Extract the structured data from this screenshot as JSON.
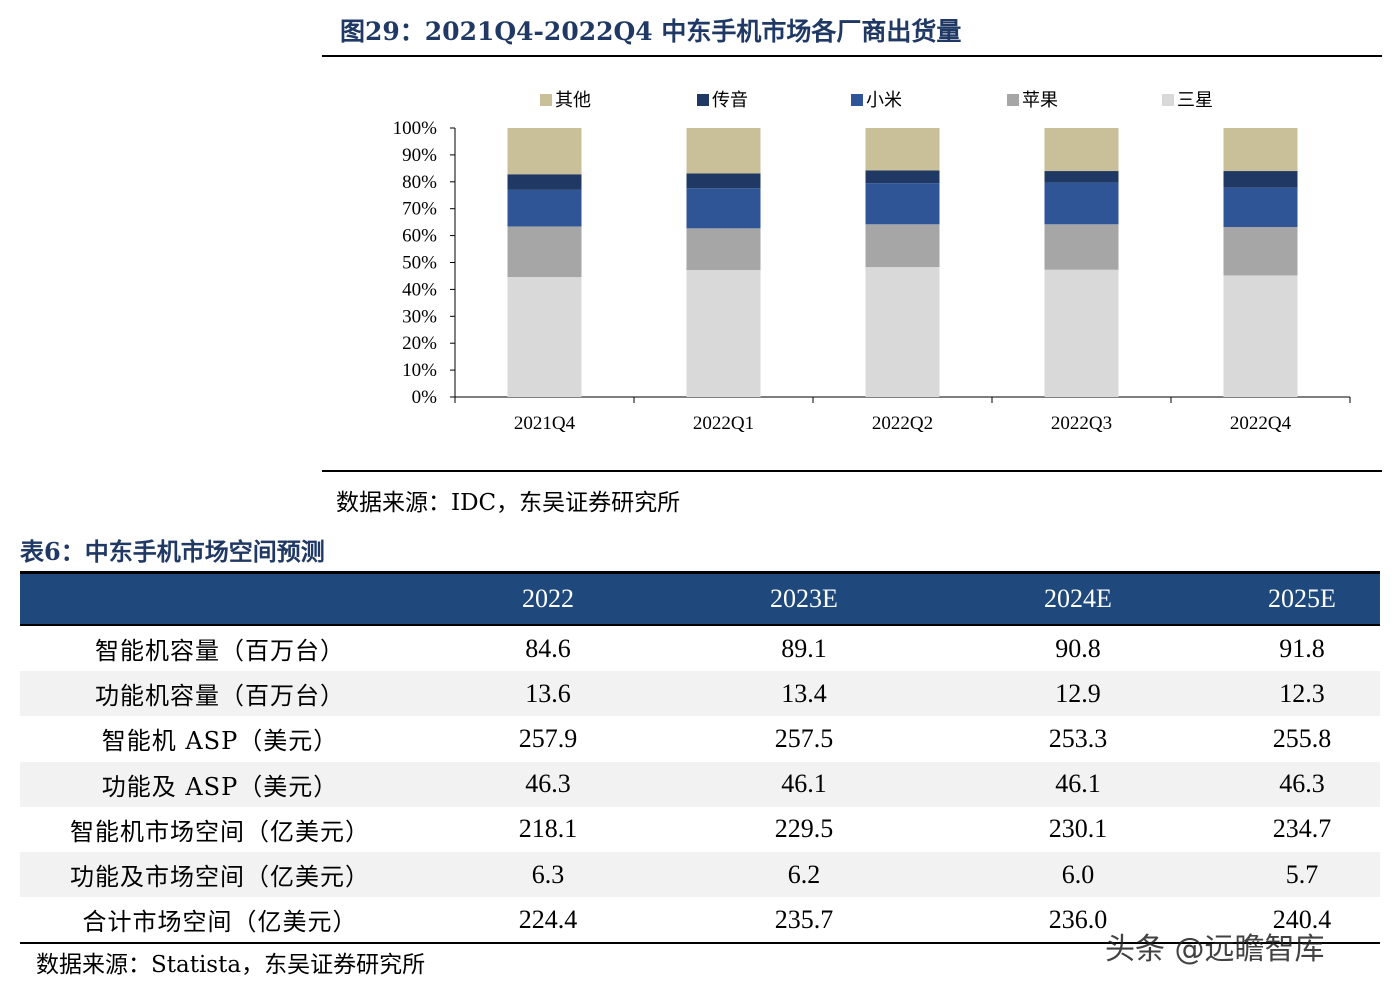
{
  "figure": {
    "title": "图29：2021Q4-2022Q4 中东手机市场各厂商出货量",
    "source": "数据来源：IDC，东吴证券研究所"
  },
  "chart_data": {
    "type": "bar",
    "stacked": true,
    "categories": [
      "2021Q4",
      "2022Q1",
      "2022Q2",
      "2022Q3",
      "2022Q4"
    ],
    "series": [
      {
        "name": "三星",
        "color": "#d9d9d9",
        "values": [
          44.6,
          47.2,
          48.3,
          47.3,
          45.2
        ]
      },
      {
        "name": "苹果",
        "color": "#a6a6a6",
        "values": [
          18.8,
          15.5,
          15.9,
          16.9,
          18.0
        ]
      },
      {
        "name": "小米",
        "color": "#2f5597",
        "values": [
          13.6,
          14.9,
          15.3,
          15.5,
          14.6
        ]
      },
      {
        "name": "传音",
        "color": "#1f3864",
        "values": [
          5.8,
          5.5,
          4.7,
          4.3,
          6.2
        ]
      },
      {
        "name": "其他",
        "color": "#c9bf99",
        "values": [
          17.2,
          16.9,
          15.8,
          16.0,
          16.0
        ]
      }
    ],
    "legend_order": [
      "其他",
      "传音",
      "小米",
      "苹果",
      "三星"
    ],
    "legend_position": "top",
    "y_ticks": [
      "0%",
      "10%",
      "20%",
      "30%",
      "40%",
      "50%",
      "60%",
      "70%",
      "80%",
      "90%",
      "100%"
    ],
    "ylim": [
      0,
      100
    ],
    "grid": false
  },
  "table": {
    "title": "表6：中东手机市场空间预测",
    "headers": [
      "",
      "2022",
      "2023E",
      "2024E",
      "2025E"
    ],
    "rows": [
      [
        "智能机容量（百万台）",
        "84.6",
        "89.1",
        "90.8",
        "91.8"
      ],
      [
        "功能机容量（百万台）",
        "13.6",
        "13.4",
        "12.9",
        "12.3"
      ],
      [
        "智能机 ASP（美元）",
        "257.9",
        "257.5",
        "253.3",
        "255.8"
      ],
      [
        "功能及 ASP（美元）",
        "46.3",
        "46.1",
        "46.1",
        "46.3"
      ],
      [
        "智能机市场空间（亿美元）",
        "218.1",
        "229.5",
        "230.1",
        "234.7"
      ],
      [
        "功能及市场空间（亿美元）",
        "6.3",
        "6.2",
        "6.0",
        "5.7"
      ],
      [
        "合计市场空间（亿美元）",
        "224.4",
        "235.7",
        "236.0",
        "240.4"
      ]
    ],
    "source": "数据来源：Statista，东吴证券研究所"
  },
  "watermark": "头条 @远瞻智库"
}
